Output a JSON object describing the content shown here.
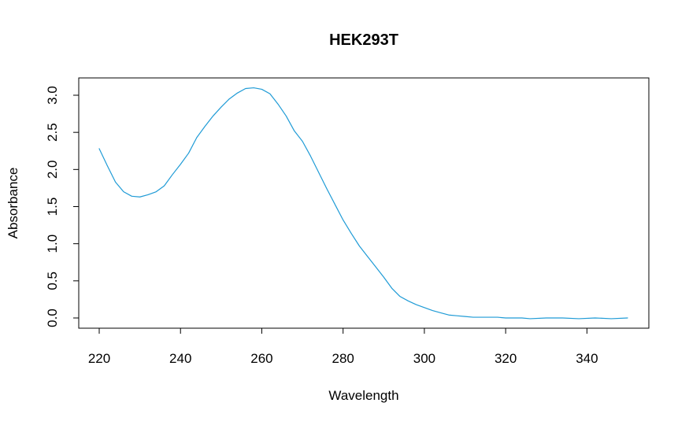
{
  "chart_data": {
    "type": "line",
    "title": "HEK293T",
    "xlabel": "Wavelength",
    "ylabel": "Absorbance",
    "xlim": [
      220,
      350
    ],
    "ylim": [
      0.0,
      3.0
    ],
    "x_ticks": [
      220,
      240,
      260,
      280,
      300,
      320,
      340
    ],
    "y_ticks": [
      0.0,
      0.5,
      1.0,
      1.5,
      2.0,
      2.5,
      3.0
    ],
    "x_tick_labels": [
      "220",
      "240",
      "260",
      "280",
      "300",
      "320",
      "340"
    ],
    "y_tick_labels": [
      "0.0",
      "0.5",
      "1.0",
      "1.5",
      "2.0",
      "2.5",
      "3.0"
    ],
    "grid": false,
    "legend": "none",
    "series": [
      {
        "color": "#1f9bd6",
        "x": [
          220,
          222,
          224,
          226,
          228,
          230,
          232,
          234,
          236,
          238,
          240,
          242,
          244,
          246,
          248,
          250,
          252,
          254,
          256,
          258,
          260,
          262,
          264,
          266,
          268,
          270,
          272,
          274,
          276,
          278,
          280,
          282,
          284,
          286,
          288,
          290,
          292,
          294,
          296,
          298,
          300,
          302,
          304,
          306,
          308,
          310,
          312,
          315,
          318,
          320,
          324,
          326,
          330,
          334,
          338,
          342,
          346,
          350
        ],
        "y": [
          2.28,
          2.05,
          1.83,
          1.7,
          1.64,
          1.63,
          1.66,
          1.7,
          1.78,
          1.93,
          2.07,
          2.22,
          2.43,
          2.58,
          2.72,
          2.84,
          2.95,
          3.03,
          3.09,
          3.1,
          3.08,
          3.02,
          2.88,
          2.72,
          2.52,
          2.38,
          2.18,
          1.96,
          1.74,
          1.53,
          1.32,
          1.14,
          0.97,
          0.83,
          0.69,
          0.55,
          0.4,
          0.29,
          0.23,
          0.18,
          0.14,
          0.1,
          0.07,
          0.04,
          0.03,
          0.02,
          0.01,
          0.01,
          0.01,
          0.0,
          0.0,
          -0.01,
          0.0,
          0.0,
          -0.01,
          0.0,
          -0.01,
          0.0
        ]
      }
    ]
  }
}
